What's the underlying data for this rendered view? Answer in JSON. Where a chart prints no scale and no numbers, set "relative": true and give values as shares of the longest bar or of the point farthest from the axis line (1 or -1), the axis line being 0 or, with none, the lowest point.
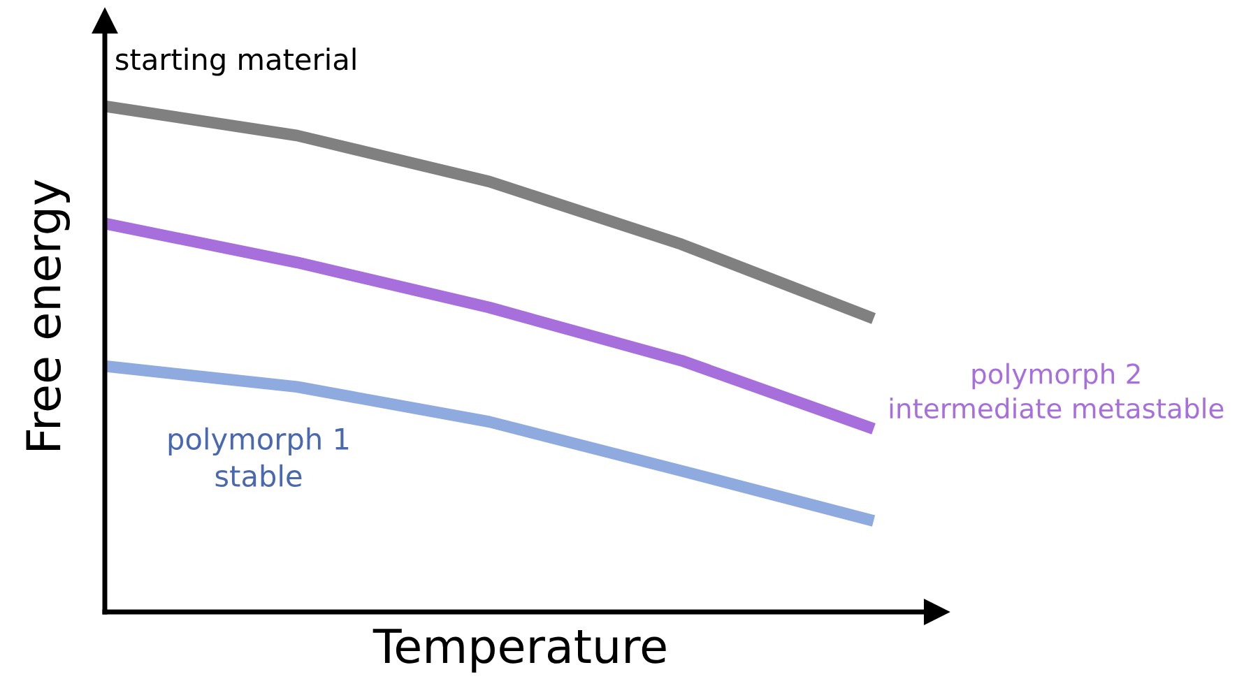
{
  "chart_data": {
    "type": "line",
    "relative": true,
    "xlabel": "Temperature",
    "ylabel": "Free energy",
    "categories": [
      null,
      null,
      null,
      null,
      null
    ],
    "legend": false,
    "marker": "none",
    "line_style": "solid",
    "series": [
      {
        "name": "starting material",
        "color": "#808080",
        "values": [
          1,
          0.942,
          0.851,
          0.727,
          0.58
        ]
      },
      {
        "name": "polymorph 2\nintermediate metastable",
        "color": "#a66fdc",
        "values": [
          0.768,
          0.691,
          0.602,
          0.497,
          0.362
        ]
      },
      {
        "name": "polymorph 1\nstable",
        "color": "#8eaadf",
        "values": [
          0.486,
          0.445,
          0.376,
          0.279,
          0.18
        ]
      }
    ]
  }
}
